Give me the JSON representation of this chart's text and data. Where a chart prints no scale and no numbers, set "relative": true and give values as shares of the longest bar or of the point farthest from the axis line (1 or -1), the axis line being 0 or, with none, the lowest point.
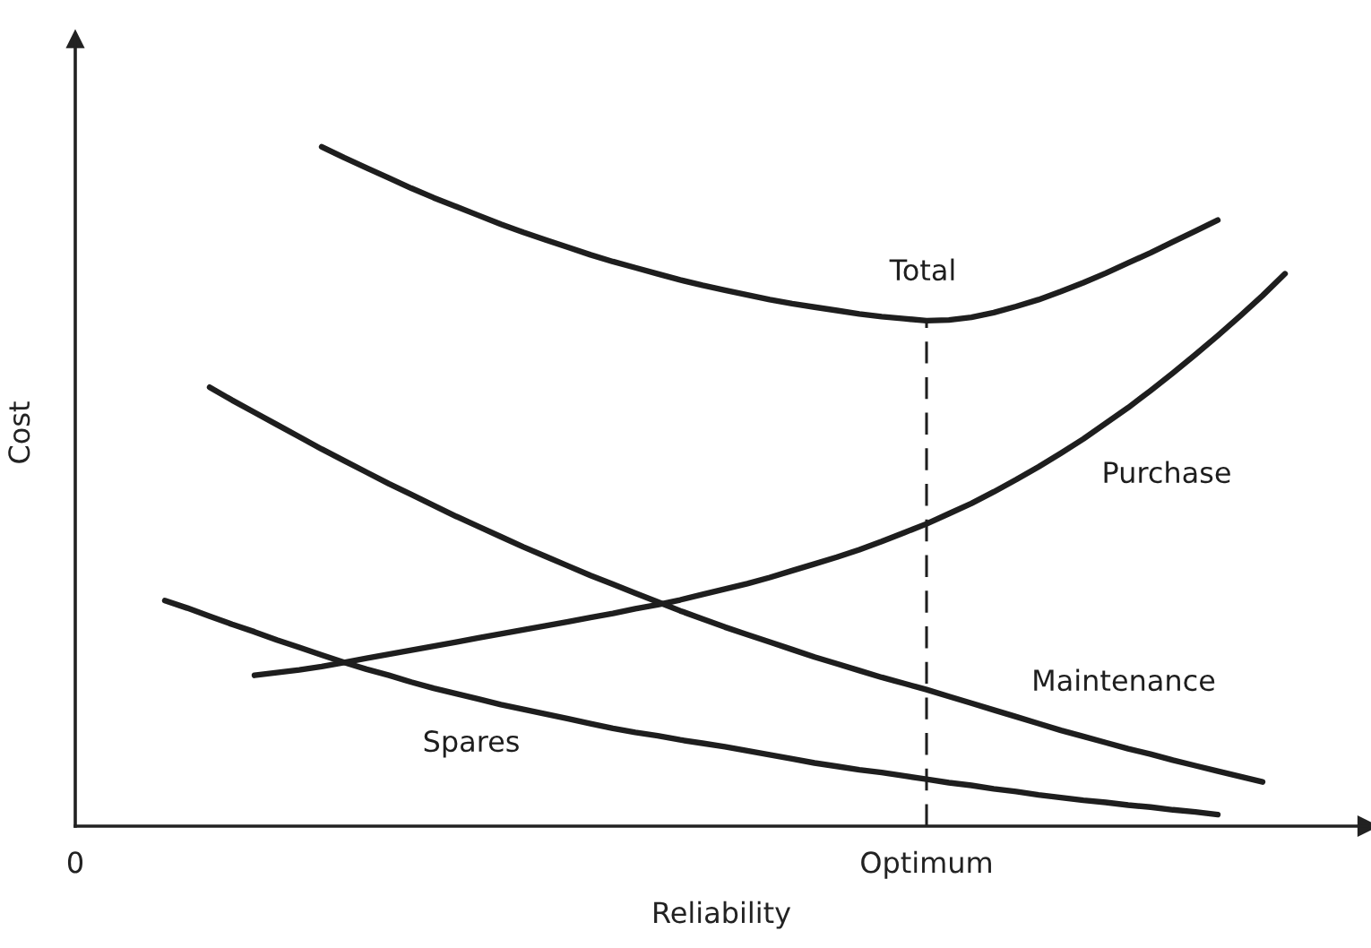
{
  "chart_data": {
    "type": "line",
    "relative": true,
    "xlabel": "Reliability",
    "ylabel": "Cost",
    "tick_labels": "x",
    "line_style": "solid",
    "categories": [
      "0",
      null,
      null,
      null,
      null,
      null,
      null,
      null,
      null,
      null,
      null,
      null,
      null,
      null,
      null,
      null,
      null,
      null,
      null,
      null,
      null,
      null,
      null,
      null,
      null,
      null,
      null,
      null,
      null,
      null,
      null,
      null,
      null,
      null,
      null,
      null,
      null,
      null,
      "Optimum",
      null,
      null,
      null,
      null,
      null,
      null,
      null,
      null,
      null,
      null,
      null,
      null,
      null,
      null,
      null,
      null,
      null,
      null,
      null
    ],
    "series": [
      {
        "name": "Total",
        "color": "#1e1e1e",
        "values": [
          null,
          null,
          null,
          null,
          null,
          null,
          null,
          null,
          null,
          null,
          null,
          1.0,
          0.984,
          0.969,
          0.954,
          0.939,
          0.925,
          0.912,
          0.899,
          0.886,
          0.874,
          0.863,
          0.852,
          0.841,
          0.831,
          0.822,
          0.813,
          0.804,
          0.796,
          0.789,
          0.782,
          0.775,
          0.769,
          0.764,
          0.759,
          0.754,
          0.75,
          0.747,
          0.744,
          0.745,
          0.749,
          0.756,
          0.765,
          0.775,
          0.787,
          0.8,
          0.814,
          0.829,
          0.844,
          0.86,
          0.876,
          0.892,
          null,
          null,
          null,
          null,
          null,
          null
        ]
      },
      {
        "name": "Purchase",
        "color": "#1e1e1e",
        "values": [
          null,
          null,
          null,
          null,
          null,
          null,
          null,
          null,
          0.222,
          0.226,
          0.23,
          0.235,
          0.241,
          0.247,
          0.253,
          0.259,
          0.265,
          0.271,
          0.277,
          0.283,
          0.289,
          0.295,
          0.301,
          0.307,
          0.313,
          0.32,
          0.326,
          0.333,
          0.341,
          0.349,
          0.357,
          0.366,
          0.376,
          0.386,
          0.396,
          0.407,
          0.419,
          0.432,
          0.445,
          0.46,
          0.475,
          0.492,
          0.51,
          0.529,
          0.549,
          0.57,
          0.593,
          0.616,
          0.641,
          0.667,
          0.694,
          0.722,
          0.751,
          0.781,
          0.813,
          null,
          null,
          null
        ]
      },
      {
        "name": "Maintenance",
        "color": "#1e1e1e",
        "values": [
          null,
          null,
          null,
          null,
          null,
          null,
          0.646,
          0.627,
          0.609,
          0.591,
          0.573,
          0.555,
          0.538,
          0.521,
          0.504,
          0.488,
          0.472,
          0.456,
          0.441,
          0.426,
          0.411,
          0.397,
          0.383,
          0.369,
          0.356,
          0.343,
          0.33,
          0.317,
          0.305,
          0.293,
          0.282,
          0.271,
          0.26,
          0.249,
          0.239,
          0.229,
          0.219,
          0.21,
          0.201,
          0.191,
          0.181,
          0.171,
          0.161,
          0.151,
          0.141,
          0.132,
          0.123,
          0.114,
          0.106,
          0.097,
          0.089,
          0.081,
          0.073,
          0.065,
          null,
          null,
          null,
          null
        ]
      },
      {
        "name": "Spares",
        "color": "#1e1e1e",
        "values": [
          null,
          null,
          null,
          null,
          0.332,
          0.321,
          0.309,
          0.297,
          0.286,
          0.274,
          0.263,
          0.252,
          0.241,
          0.231,
          0.222,
          0.212,
          0.203,
          0.195,
          0.187,
          0.179,
          0.172,
          0.165,
          0.158,
          0.151,
          0.144,
          0.138,
          0.133,
          0.127,
          0.122,
          0.117,
          0.111,
          0.105,
          0.099,
          0.093,
          0.088,
          0.083,
          0.079,
          0.074,
          0.069,
          0.064,
          0.06,
          0.055,
          0.051,
          0.046,
          0.042,
          0.038,
          0.035,
          0.031,
          0.028,
          0.024,
          0.021,
          0.017,
          null,
          null,
          null,
          null,
          null,
          null
        ]
      }
    ],
    "ref_lines": [
      {
        "axis": "x",
        "value": "Optimum",
        "line_style": "dashed",
        "color": "#1e1e1e"
      }
    ]
  }
}
